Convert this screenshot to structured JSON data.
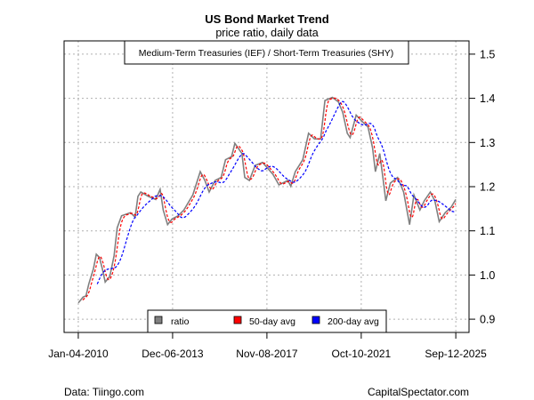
{
  "chart_data": {
    "type": "line",
    "title": "US Bond Market Trend",
    "subtitle": "price ratio, daily data",
    "series_title": "Medium-Term Treasuries (IEF) / Short-Term Treasuries (SHY)",
    "xlabel": "",
    "ylabel": "",
    "x_units": "decimal year",
    "xlim": [
      2009.42,
      2026.25
    ],
    "ylim": [
      0.87,
      1.53
    ],
    "grid": true,
    "y_axis_side": "right",
    "y_ticks": [
      0.9,
      1.0,
      1.1,
      1.2,
      1.3,
      1.4,
      1.5
    ],
    "y_tick_labels": [
      "0.9",
      "1.0",
      "1.1",
      "1.2",
      "1.3",
      "1.4",
      "1.5"
    ],
    "x_ticks": [
      2010.01,
      2013.93,
      2017.85,
      2021.77,
      2025.7
    ],
    "x_tick_labels": [
      "Jan-04-2010",
      "Dec-06-2013",
      "Nov-08-2017",
      "Oct-10-2021",
      "Sep-12-2025"
    ],
    "legend_placement": "bottom-center",
    "legend": [
      {
        "name": "ratio",
        "color": "#808080"
      },
      {
        "name": "50-day avg",
        "color": "#ff0000"
      },
      {
        "name": "200-day avg",
        "color": "#0000ff"
      }
    ],
    "ratio": {
      "x": [
        2010.01,
        2010.21,
        2010.33,
        2010.45,
        2010.64,
        2010.76,
        2010.89,
        2011.01,
        2011.13,
        2011.32,
        2011.5,
        2011.63,
        2011.81,
        2012.18,
        2012.37,
        2012.49,
        2012.61,
        2012.92,
        2013.23,
        2013.41,
        2013.54,
        2013.72,
        2013.91,
        2014.16,
        2014.4,
        2014.77,
        2015.08,
        2015.27,
        2015.45,
        2015.7,
        2015.95,
        2016.13,
        2016.38,
        2016.52,
        2016.81,
        2016.93,
        2017.12,
        2017.36,
        2017.67,
        2018.1,
        2018.35,
        2018.72,
        2018.84,
        2019.03,
        2019.34,
        2019.58,
        2019.83,
        2020.08,
        2020.26,
        2020.57,
        2020.82,
        2021.0,
        2021.19,
        2021.31,
        2021.56,
        2021.8,
        2022.05,
        2022.24,
        2022.36,
        2022.54,
        2022.67,
        2022.79,
        2022.98,
        2023.28,
        2023.53,
        2023.78,
        2023.96,
        2024.21,
        2024.39,
        2024.64,
        2024.83,
        2025.01,
        2025.26,
        2025.51,
        2025.7
      ],
      "y": [
        0.937,
        0.95,
        0.953,
        0.98,
        1.014,
        1.047,
        1.04,
        1.014,
        0.984,
        0.997,
        1.044,
        1.107,
        1.134,
        1.141,
        1.131,
        1.178,
        1.188,
        1.178,
        1.171,
        1.194,
        1.147,
        1.114,
        1.127,
        1.134,
        1.147,
        1.181,
        1.234,
        1.214,
        1.188,
        1.214,
        1.221,
        1.261,
        1.268,
        1.298,
        1.275,
        1.221,
        1.214,
        1.248,
        1.255,
        1.228,
        1.204,
        1.214,
        1.201,
        1.234,
        1.261,
        1.321,
        1.308,
        1.308,
        1.395,
        1.402,
        1.392,
        1.368,
        1.321,
        1.311,
        1.362,
        1.348,
        1.335,
        1.288,
        1.234,
        1.275,
        1.221,
        1.168,
        1.208,
        1.221,
        1.188,
        1.114,
        1.181,
        1.147,
        1.168,
        1.188,
        1.168,
        1.121,
        1.141,
        1.154,
        1.171
      ]
    },
    "moving_averages_days": [
      50,
      200
    ]
  },
  "footer": {
    "source": "Data: Tiingo.com",
    "brand": "CapitalSpectator.com"
  },
  "colors": {
    "ratio": "#808080",
    "ma50": "#ff0000",
    "ma200": "#0000ff",
    "grid": "#b0b0b0"
  }
}
